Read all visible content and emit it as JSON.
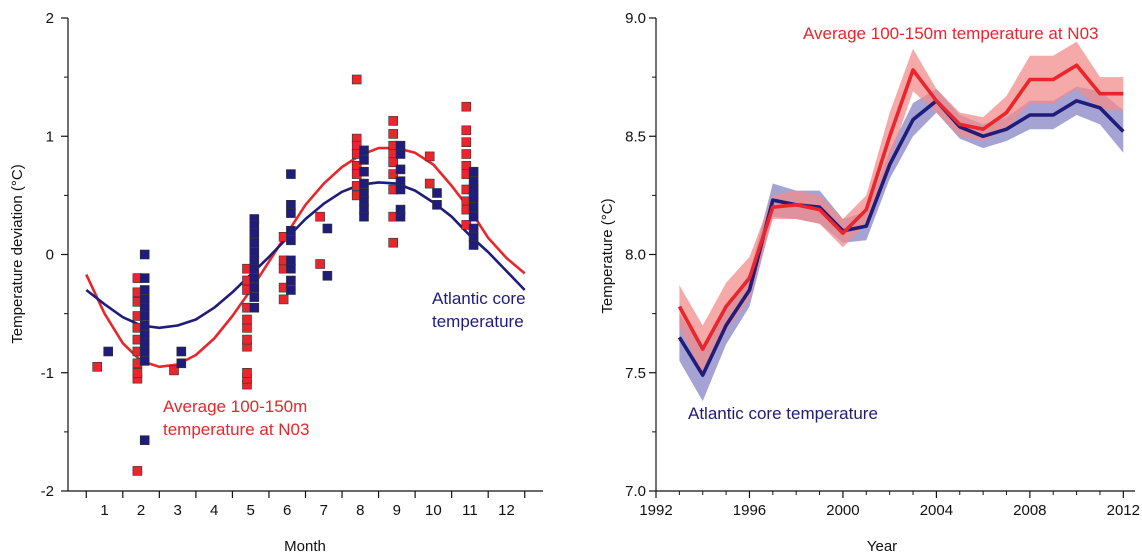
{
  "colors": {
    "red": "#e8262b",
    "red_marker": "#e8262b",
    "red_band": "#f18c8c",
    "navy": "#1f1c7a",
    "navy_marker": "#1f1c7a",
    "navy_band": "#8784c4"
  },
  "chart_data": [
    {
      "type": "scatter",
      "xlabel": "Month",
      "ylabel": "Temperature deviation (°C)",
      "xlim": [
        0,
        13
      ],
      "ylim": [
        -2,
        2
      ],
      "x_ticks": [
        1,
        2,
        3,
        4,
        5,
        6,
        7,
        8,
        9,
        10,
        11,
        12
      ],
      "y_ticks": [
        -2,
        -1,
        0,
        1,
        2
      ],
      "annotations": [
        {
          "lines": [
            "Atlantic core",
            "temperature"
          ],
          "series": "atlantic"
        },
        {
          "lines": [
            "Average 100-150m",
            "temperature at N03"
          ],
          "series": "n03"
        }
      ],
      "series": [
        {
          "key": "n03",
          "color": "#e8262b",
          "points": [
            [
              0.8,
              -0.95
            ],
            [
              1.9,
              -1.83
            ],
            [
              1.9,
              -1.05
            ],
            [
              1.9,
              -1.0
            ],
            [
              1.9,
              -0.92
            ],
            [
              1.9,
              -0.82
            ],
            [
              1.9,
              -0.72
            ],
            [
              1.9,
              -0.62
            ],
            [
              1.9,
              -0.52
            ],
            [
              1.9,
              -0.4
            ],
            [
              1.9,
              -0.32
            ],
            [
              1.9,
              -0.2
            ],
            [
              2.9,
              -0.98
            ],
            [
              4.9,
              -1.1
            ],
            [
              4.9,
              -1.05
            ],
            [
              4.9,
              -1.0
            ],
            [
              4.9,
              -0.78
            ],
            [
              4.9,
              -0.72
            ],
            [
              4.9,
              -0.62
            ],
            [
              4.9,
              -0.55
            ],
            [
              4.9,
              -0.45
            ],
            [
              4.9,
              -0.3
            ],
            [
              4.9,
              -0.22
            ],
            [
              4.9,
              -0.12
            ],
            [
              5.9,
              -0.38
            ],
            [
              5.9,
              -0.28
            ],
            [
              5.9,
              -0.12
            ],
            [
              5.9,
              -0.05
            ],
            [
              5.9,
              0.15
            ],
            [
              6.9,
              -0.08
            ],
            [
              6.9,
              0.32
            ],
            [
              7.9,
              1.48
            ],
            [
              7.9,
              0.98
            ],
            [
              7.9,
              0.92
            ],
            [
              7.9,
              0.85
            ],
            [
              7.9,
              0.75
            ],
            [
              7.9,
              0.68
            ],
            [
              7.9,
              0.58
            ],
            [
              7.9,
              0.5
            ],
            [
              8.9,
              1.13
            ],
            [
              8.9,
              1.02
            ],
            [
              8.9,
              0.92
            ],
            [
              8.9,
              0.85
            ],
            [
              8.9,
              0.78
            ],
            [
              8.9,
              0.68
            ],
            [
              8.9,
              0.55
            ],
            [
              8.9,
              0.32
            ],
            [
              8.9,
              0.1
            ],
            [
              9.9,
              0.83
            ],
            [
              9.9,
              0.6
            ],
            [
              10.9,
              1.25
            ],
            [
              10.9,
              1.05
            ],
            [
              10.9,
              0.95
            ],
            [
              10.9,
              0.85
            ],
            [
              10.9,
              0.75
            ],
            [
              10.9,
              0.68
            ],
            [
              10.9,
              0.55
            ],
            [
              10.9,
              0.45
            ],
            [
              10.9,
              0.38
            ],
            [
              10.9,
              0.25
            ]
          ],
          "fit": [
            [
              0.5,
              -0.17
            ],
            [
              1,
              -0.5
            ],
            [
              1.5,
              -0.75
            ],
            [
              2,
              -0.9
            ],
            [
              2.5,
              -0.95
            ],
            [
              3,
              -0.93
            ],
            [
              3.5,
              -0.85
            ],
            [
              4,
              -0.71
            ],
            [
              4.5,
              -0.52
            ],
            [
              5,
              -0.3
            ],
            [
              5.5,
              -0.06
            ],
            [
              6,
              0.18
            ],
            [
              6.5,
              0.42
            ],
            [
              7,
              0.6
            ],
            [
              7.5,
              0.74
            ],
            [
              8,
              0.84
            ],
            [
              8.5,
              0.9
            ],
            [
              9,
              0.9
            ],
            [
              9.5,
              0.86
            ],
            [
              10,
              0.76
            ],
            [
              10.5,
              0.58
            ],
            [
              11,
              0.38
            ],
            [
              11.5,
              0.14
            ],
            [
              12,
              -0.03
            ],
            [
              12.5,
              -0.16
            ]
          ]
        },
        {
          "key": "atlantic",
          "color": "#1f1c7a",
          "points": [
            [
              1.1,
              -0.82
            ],
            [
              2.1,
              -1.57
            ],
            [
              2.1,
              0.0
            ],
            [
              2.1,
              -0.2
            ],
            [
              2.1,
              -0.3
            ],
            [
              2.1,
              -0.38
            ],
            [
              2.1,
              -0.45
            ],
            [
              2.1,
              -0.52
            ],
            [
              2.1,
              -0.6
            ],
            [
              2.1,
              -0.68
            ],
            [
              2.1,
              -0.75
            ],
            [
              2.1,
              -0.82
            ],
            [
              2.1,
              -0.9
            ],
            [
              3.1,
              -0.82
            ],
            [
              3.1,
              -0.92
            ],
            [
              5.1,
              0.3
            ],
            [
              5.1,
              0.25
            ],
            [
              5.1,
              0.18
            ],
            [
              5.1,
              0.1
            ],
            [
              5.1,
              0.02
            ],
            [
              5.1,
              -0.05
            ],
            [
              5.1,
              -0.12
            ],
            [
              5.1,
              -0.2
            ],
            [
              5.1,
              -0.28
            ],
            [
              5.1,
              -0.36
            ],
            [
              5.1,
              -0.45
            ],
            [
              6.1,
              0.68
            ],
            [
              6.1,
              0.42
            ],
            [
              6.1,
              0.35
            ],
            [
              6.1,
              0.2
            ],
            [
              6.1,
              0.12
            ],
            [
              6.1,
              -0.05
            ],
            [
              6.1,
              -0.12
            ],
            [
              6.1,
              -0.22
            ],
            [
              6.1,
              -0.3
            ],
            [
              7.1,
              0.22
            ],
            [
              7.1,
              -0.18
            ],
            [
              8.1,
              0.88
            ],
            [
              8.1,
              0.8
            ],
            [
              8.1,
              0.7
            ],
            [
              8.1,
              0.6
            ],
            [
              8.1,
              0.52
            ],
            [
              8.1,
              0.45
            ],
            [
              8.1,
              0.38
            ],
            [
              8.1,
              0.32
            ],
            [
              9.1,
              0.92
            ],
            [
              9.1,
              0.85
            ],
            [
              9.1,
              0.72
            ],
            [
              9.1,
              0.62
            ],
            [
              9.1,
              0.55
            ],
            [
              9.1,
              0.38
            ],
            [
              9.1,
              0.32
            ],
            [
              10.1,
              0.52
            ],
            [
              10.1,
              0.42
            ],
            [
              11.1,
              0.7
            ],
            [
              11.1,
              0.62
            ],
            [
              11.1,
              0.55
            ],
            [
              11.1,
              0.48
            ],
            [
              11.1,
              0.4
            ],
            [
              11.1,
              0.32
            ],
            [
              11.1,
              0.22
            ],
            [
              11.1,
              0.15
            ],
            [
              11.1,
              0.08
            ]
          ],
          "fit": [
            [
              0.5,
              -0.3
            ],
            [
              1,
              -0.42
            ],
            [
              1.5,
              -0.53
            ],
            [
              2,
              -0.6
            ],
            [
              2.5,
              -0.62
            ],
            [
              3,
              -0.6
            ],
            [
              3.5,
              -0.55
            ],
            [
              4,
              -0.45
            ],
            [
              4.5,
              -0.32
            ],
            [
              5,
              -0.17
            ],
            [
              5.5,
              -0.02
            ],
            [
              6,
              0.14
            ],
            [
              6.5,
              0.3
            ],
            [
              7,
              0.43
            ],
            [
              7.5,
              0.53
            ],
            [
              8,
              0.59
            ],
            [
              8.5,
              0.61
            ],
            [
              9,
              0.6
            ],
            [
              9.5,
              0.54
            ],
            [
              10,
              0.44
            ],
            [
              10.5,
              0.32
            ],
            [
              11,
              0.16
            ],
            [
              11.5,
              0.02
            ],
            [
              12,
              -0.14
            ],
            [
              12.5,
              -0.3
            ]
          ]
        }
      ]
    },
    {
      "type": "line",
      "xlabel": "Year",
      "ylabel": "Temperature (°C)",
      "xlim": [
        1992,
        2012.5
      ],
      "ylim": [
        7.0,
        9.0
      ],
      "x_ticks": [
        1992,
        1996,
        2000,
        2004,
        2008,
        2012
      ],
      "y_ticks": [
        "7.0",
        "7.5",
        "8.0",
        "8.5",
        "9.0"
      ],
      "x": [
        1993,
        1994,
        1995,
        1996,
        1997,
        1998,
        1999,
        2000,
        2001,
        2002,
        2003,
        2004,
        2005,
        2006,
        2007,
        2008,
        2009,
        2010,
        2011,
        2012
      ],
      "annotations": [
        {
          "text": "Average 100-150m temperature at N03",
          "series": "n03"
        },
        {
          "text": "Atlantic core temperature",
          "series": "atlantic"
        }
      ],
      "series": [
        {
          "key": "n03",
          "color": "#e8262b",
          "band_color": "#f18c8c",
          "values": [
            7.78,
            7.6,
            7.78,
            7.9,
            8.2,
            8.21,
            8.19,
            8.09,
            8.19,
            8.5,
            8.78,
            8.65,
            8.55,
            8.53,
            8.6,
            8.74,
            8.74,
            8.8,
            8.68,
            8.68
          ],
          "band": [
            0.09,
            0.1,
            0.1,
            0.09,
            0.05,
            0.06,
            0.06,
            0.06,
            0.06,
            0.1,
            0.09,
            0.05,
            0.05,
            0.05,
            0.07,
            0.1,
            0.1,
            0.1,
            0.07,
            0.07
          ]
        },
        {
          "key": "atlantic",
          "color": "#1f1c7a",
          "band_color": "#8784c4",
          "values": [
            7.65,
            7.49,
            7.7,
            7.85,
            8.23,
            8.21,
            8.2,
            8.1,
            8.12,
            8.38,
            8.57,
            8.65,
            8.54,
            8.5,
            8.53,
            8.59,
            8.59,
            8.65,
            8.62,
            8.52
          ],
          "band": [
            0.1,
            0.11,
            0.08,
            0.07,
            0.07,
            0.06,
            0.07,
            0.05,
            0.06,
            0.06,
            0.07,
            0.05,
            0.05,
            0.05,
            0.05,
            0.06,
            0.06,
            0.06,
            0.07,
            0.09
          ]
        }
      ]
    }
  ]
}
